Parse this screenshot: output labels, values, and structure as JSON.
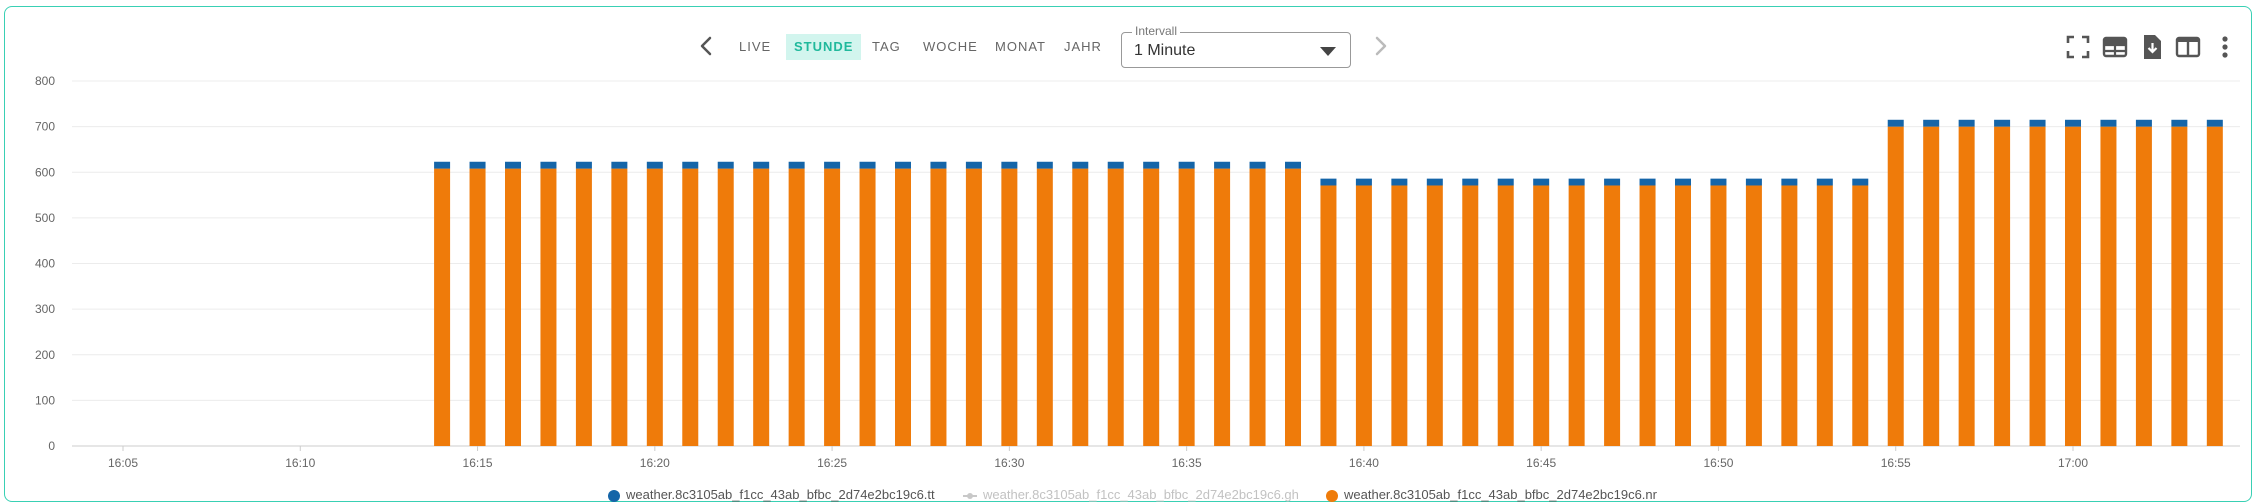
{
  "toolbar": {
    "tabs": [
      {
        "label": "LIVE",
        "active": false
      },
      {
        "label": "STUNDE",
        "active": true
      },
      {
        "label": "TAG",
        "active": false
      },
      {
        "label": "WOCHE",
        "active": false
      },
      {
        "label": "MONAT",
        "active": false
      },
      {
        "label": "JAHR",
        "active": false
      }
    ],
    "interval_label": "Intervall",
    "interval_value": "1 Minute",
    "icons": [
      "prev-arrow-icon",
      "next-arrow-icon",
      "fullscreen-icon",
      "table-icon",
      "download-icon",
      "split-view-icon",
      "more-vertical-icon"
    ]
  },
  "colors": {
    "accent": "#20b99c",
    "frame": "#39d0b4",
    "series_tt": "#1565a8",
    "series_gh": "#c8c8c8",
    "series_nr": "#ef7b0a"
  },
  "chart_data": {
    "type": "bar",
    "stacked": true,
    "title": "",
    "xlabel": "",
    "ylabel": "",
    "ylim": [
      0,
      800
    ],
    "yticks": [
      0,
      100,
      200,
      300,
      400,
      500,
      600,
      700,
      800
    ],
    "xtick_labels": [
      "16:05",
      "16:10",
      "16:15",
      "16:20",
      "16:25",
      "16:30",
      "16:35",
      "16:40",
      "16:45",
      "16:50",
      "16:55",
      "17:00"
    ],
    "x_start": "16:04",
    "x_end": "17:04",
    "grid": true,
    "legend_position": "bottom-center",
    "series": [
      {
        "name": "weather.8c3105ab_f1cc_43ab_bfbc_2d74e2bc19c6.tt",
        "color": "#1565a8",
        "legend_enabled": true,
        "points": [
          [
            "16:14",
            15
          ],
          [
            "16:15",
            15
          ],
          [
            "16:16",
            15
          ],
          [
            "16:17",
            15
          ],
          [
            "16:18",
            15
          ],
          [
            "16:19",
            15
          ],
          [
            "16:20",
            15
          ],
          [
            "16:21",
            15
          ],
          [
            "16:22",
            15
          ],
          [
            "16:23",
            15
          ],
          [
            "16:24",
            15
          ],
          [
            "16:25",
            15
          ],
          [
            "16:26",
            15
          ],
          [
            "16:27",
            15
          ],
          [
            "16:28",
            15
          ],
          [
            "16:29",
            15
          ],
          [
            "16:30",
            15
          ],
          [
            "16:31",
            15
          ],
          [
            "16:32",
            15
          ],
          [
            "16:33",
            15
          ],
          [
            "16:34",
            15
          ],
          [
            "16:35",
            15
          ],
          [
            "16:36",
            15
          ],
          [
            "16:37",
            15
          ],
          [
            "16:38",
            15
          ],
          [
            "16:39",
            15
          ],
          [
            "16:40",
            15
          ],
          [
            "16:41",
            15
          ],
          [
            "16:42",
            15
          ],
          [
            "16:43",
            15
          ],
          [
            "16:44",
            15
          ],
          [
            "16:45",
            15
          ],
          [
            "16:46",
            15
          ],
          [
            "16:47",
            15
          ],
          [
            "16:48",
            15
          ],
          [
            "16:49",
            15
          ],
          [
            "16:50",
            15
          ],
          [
            "16:51",
            15
          ],
          [
            "16:52",
            15
          ],
          [
            "16:53",
            15
          ],
          [
            "16:54",
            15
          ],
          [
            "16:55",
            15
          ],
          [
            "16:56",
            15
          ],
          [
            "16:57",
            15
          ],
          [
            "16:58",
            15
          ],
          [
            "16:59",
            15
          ],
          [
            "17:00",
            15
          ],
          [
            "17:01",
            15
          ],
          [
            "17:02",
            15
          ],
          [
            "17:03",
            15
          ],
          [
            "17:04",
            15
          ]
        ]
      },
      {
        "name": "weather.8c3105ab_f1cc_43ab_bfbc_2d74e2bc19c6.gh",
        "color": "#c8c8c8",
        "legend_enabled": false,
        "points": []
      },
      {
        "name": "weather.8c3105ab_f1cc_43ab_bfbc_2d74e2bc19c6.nr",
        "color": "#ef7b0a",
        "legend_enabled": true,
        "points": [
          [
            "16:14",
            608
          ],
          [
            "16:15",
            608
          ],
          [
            "16:16",
            608
          ],
          [
            "16:17",
            608
          ],
          [
            "16:18",
            608
          ],
          [
            "16:19",
            608
          ],
          [
            "16:20",
            608
          ],
          [
            "16:21",
            608
          ],
          [
            "16:22",
            608
          ],
          [
            "16:23",
            608
          ],
          [
            "16:24",
            608
          ],
          [
            "16:25",
            608
          ],
          [
            "16:26",
            608
          ],
          [
            "16:27",
            608
          ],
          [
            "16:28",
            608
          ],
          [
            "16:29",
            608
          ],
          [
            "16:30",
            608
          ],
          [
            "16:31",
            608
          ],
          [
            "16:32",
            608
          ],
          [
            "16:33",
            608
          ],
          [
            "16:34",
            608
          ],
          [
            "16:35",
            608
          ],
          [
            "16:36",
            608
          ],
          [
            "16:37",
            608
          ],
          [
            "16:38",
            608
          ],
          [
            "16:39",
            571
          ],
          [
            "16:40",
            571
          ],
          [
            "16:41",
            571
          ],
          [
            "16:42",
            571
          ],
          [
            "16:43",
            571
          ],
          [
            "16:44",
            571
          ],
          [
            "16:45",
            571
          ],
          [
            "16:46",
            571
          ],
          [
            "16:47",
            571
          ],
          [
            "16:48",
            571
          ],
          [
            "16:49",
            571
          ],
          [
            "16:50",
            571
          ],
          [
            "16:51",
            571
          ],
          [
            "16:52",
            571
          ],
          [
            "16:53",
            571
          ],
          [
            "16:54",
            571
          ],
          [
            "16:55",
            700
          ],
          [
            "16:56",
            700
          ],
          [
            "16:57",
            700
          ],
          [
            "16:58",
            700
          ],
          [
            "16:59",
            700
          ],
          [
            "17:00",
            700
          ],
          [
            "17:01",
            700
          ],
          [
            "17:02",
            700
          ],
          [
            "17:03",
            700
          ],
          [
            "17:04",
            700
          ]
        ]
      }
    ]
  }
}
